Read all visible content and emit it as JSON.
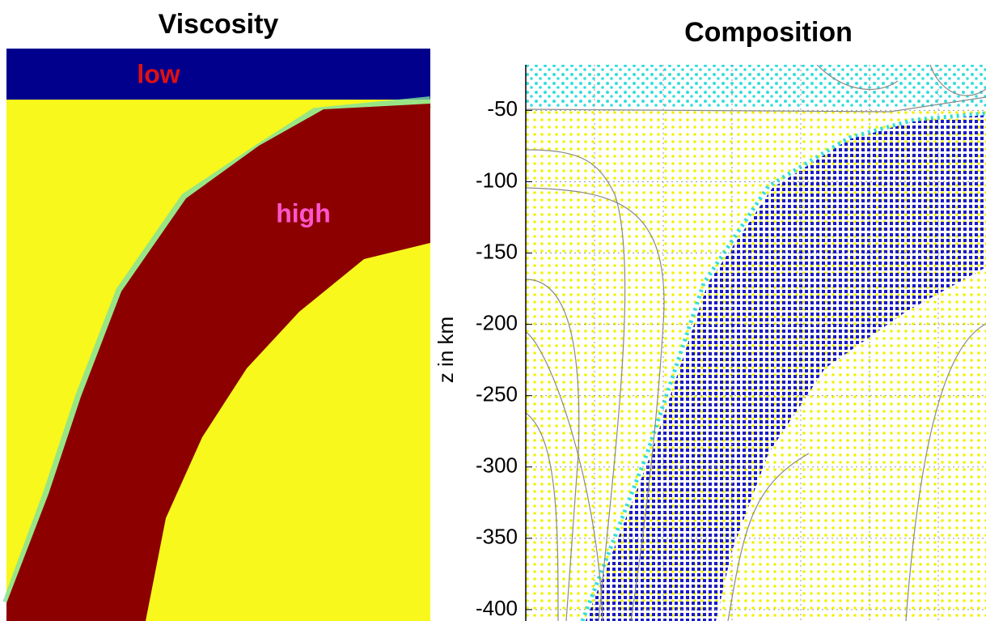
{
  "chart_data": [
    {
      "type": "heatmap",
      "title": "Viscosity",
      "annotations": [
        "low",
        "high"
      ]
    },
    {
      "type": "scatter",
      "title": "Composition",
      "y_label": "z in km",
      "ylim": [
        -408,
        -18
      ],
      "yticks": [
        -50,
        -100,
        -150,
        -200,
        -250,
        -300,
        -350,
        -400
      ],
      "grid": true
    }
  ]
}
